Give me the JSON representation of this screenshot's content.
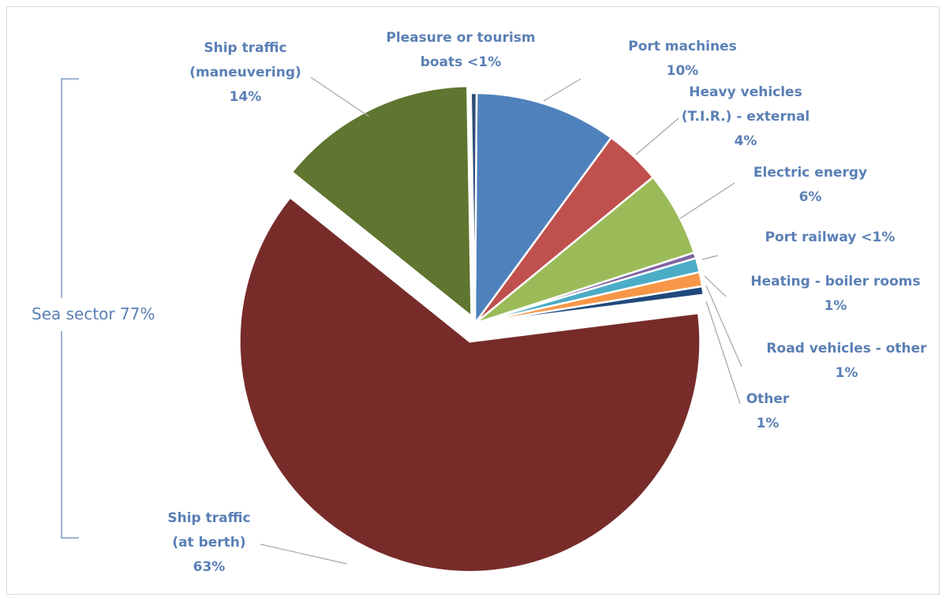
{
  "chart_data": {
    "type": "pie",
    "title": "",
    "slices": [
      {
        "name": "Port machines",
        "value": 10,
        "label_lines": [
          "Port machines",
          "10%"
        ],
        "color": "#4f81bd"
      },
      {
        "name": "Heavy vehicles (T.I.R.) - external",
        "value": 4,
        "label_lines": [
          "Heavy vehicles",
          "(T.I.R.) - external",
          "4%"
        ],
        "color": "#c0504d"
      },
      {
        "name": "Electric energy",
        "value": 6,
        "label_lines": [
          "Electric energy",
          "6%"
        ],
        "color": "#9bbb59"
      },
      {
        "name": "Port railway",
        "value": 0.4,
        "label_lines": [
          "Port railway <1%"
        ],
        "color": "#8064a2"
      },
      {
        "name": "Heating - boiler rooms",
        "value": 1,
        "label_lines": [
          "Heating - boiler rooms",
          "1%"
        ],
        "color": "#4bacc6"
      },
      {
        "name": "Road vehicles - other",
        "value": 1,
        "label_lines": [
          "Road vehicles - other",
          "1%"
        ],
        "color": "#f79646"
      },
      {
        "name": "Other",
        "value": 0.6,
        "label_lines": [
          "Other",
          "1%"
        ],
        "color": "#1f497d"
      },
      {
        "name": "Ship traffic (at berth)",
        "value": 63,
        "label_lines": [
          "Ship traffic",
          "(at berth)",
          "63%"
        ],
        "color": "#772c2a"
      },
      {
        "name": "Ship traffic (maneuvering)",
        "value": 14,
        "label_lines": [
          "Ship traffic",
          "(maneuvering)",
          "14%"
        ],
        "color": "#5f7530"
      },
      {
        "name": "Pleasure or tourism boats",
        "value": 0.4,
        "label_lines": [
          "Pleasure or tourism",
          "boats <1%"
        ],
        "color": "#2c4d75"
      }
    ],
    "annotation": "Sea sector 77%",
    "legend": "none"
  }
}
